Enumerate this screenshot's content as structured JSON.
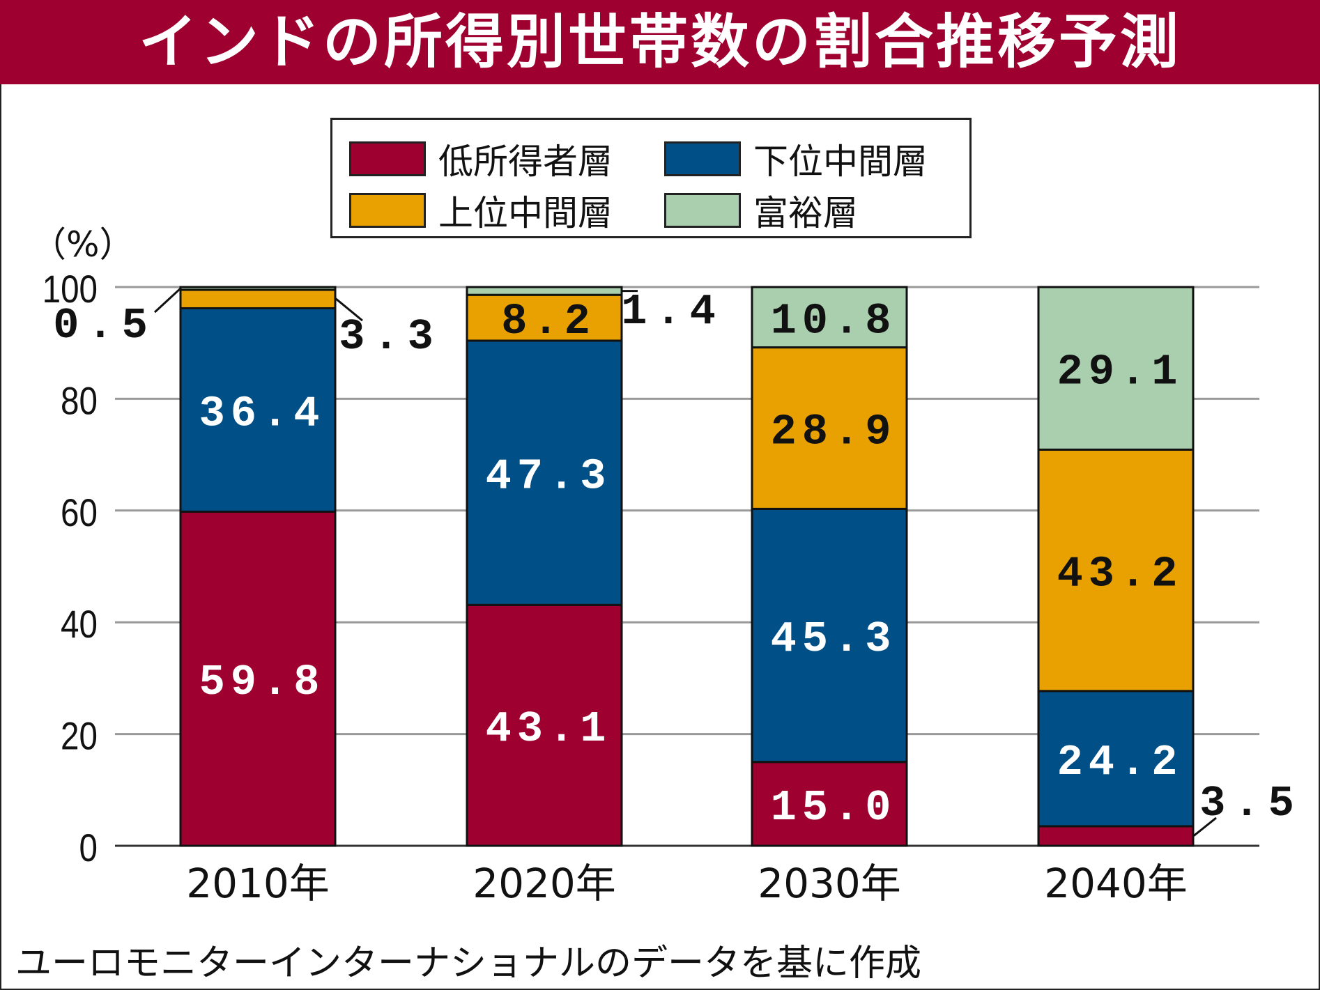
{
  "chart_data": {
    "type": "bar",
    "stacked": true,
    "title": "インドの所得別世帯数の割合推移予測",
    "ylabel": "（%）",
    "xlabel": "",
    "ylim": [
      0,
      100
    ],
    "yticks": [
      0,
      20,
      40,
      60,
      80,
      100
    ],
    "categories": [
      "2010年",
      "2020年",
      "2030年",
      "2040年"
    ],
    "series": [
      {
        "name": "低所得者層",
        "color": "#9e0030",
        "label_color": "#ffffff",
        "values": [
          59.8,
          43.1,
          15.0,
          3.5
        ],
        "labels": [
          "59.8",
          "43.1",
          "15.0",
          "3.5"
        ]
      },
      {
        "name": "下位中間層",
        "color": "#005087",
        "label_color": "#ffffff",
        "values": [
          36.4,
          47.3,
          45.3,
          24.2
        ],
        "labels": [
          "36.4",
          "47.3",
          "45.3",
          "24.2"
        ]
      },
      {
        "name": "上位中間層",
        "color": "#e8a100",
        "label_color": "#111111",
        "values": [
          3.3,
          8.2,
          28.9,
          43.2
        ],
        "labels": [
          "3.3",
          "8.2",
          "28.9",
          "43.2"
        ]
      },
      {
        "name": "富裕層",
        "color": "#a9cfae",
        "label_color": "#111111",
        "values": [
          0.5,
          1.4,
          10.8,
          29.1
        ],
        "labels": [
          "0.5",
          "1.4",
          "10.8",
          "29.1"
        ]
      }
    ],
    "grid": true,
    "legend_position": "top-center",
    "source": "ユーロモニターインターナショナルのデータを基に作成"
  }
}
